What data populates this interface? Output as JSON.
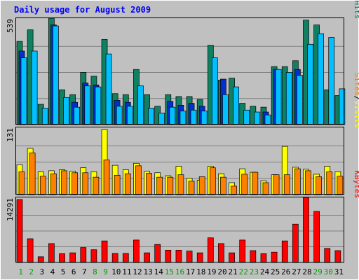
{
  "chart_data": {
    "type": "bar",
    "title": "Daily usage for August 2009",
    "categories": [
      "1",
      "2",
      "3",
      "4",
      "5",
      "6",
      "7",
      "8",
      "9",
      "10",
      "11",
      "12",
      "13",
      "14",
      "15",
      "16",
      "17",
      "18",
      "19",
      "20",
      "21",
      "22",
      "23",
      "24",
      "25",
      "26",
      "27",
      "28",
      "29",
      "30",
      "31"
    ],
    "weekend_days": [
      "1",
      "2",
      "8",
      "9",
      "15",
      "16",
      "22",
      "23",
      "29",
      "30"
    ],
    "panels": [
      {
        "name": "hits-files-pages-visits",
        "max_label": "539",
        "ylim": [
          0,
          539
        ],
        "legend": [
          {
            "text": "Pages",
            "color": "#00c0ff"
          },
          {
            "text": "/",
            "color": "#000000"
          },
          {
            "text": "Files",
            "color": "#0030d0"
          },
          {
            "text": "/",
            "color": "#000000"
          },
          {
            "text": "Hits",
            "color": "#108060"
          }
        ],
        "series": [
          {
            "name": "Hits",
            "color": "#108060",
            "values": [
              430,
              490,
              105,
              550,
              180,
              155,
              270,
              250,
              440,
              160,
              155,
              285,
              155,
              95,
              155,
              145,
              145,
              130,
              410,
              230,
              240,
              110,
              95,
              90,
              300,
              300,
              330,
              540,
              515,
              180,
              150
            ]
          },
          {
            "name": "Files",
            "color": "#0030d0",
            "values": [
              380,
              0,
              0,
              515,
              0,
              115,
              215,
              205,
              0,
              125,
              115,
              0,
              0,
              0,
              120,
              100,
              110,
              95,
              0,
              235,
              0,
              0,
              0,
              65,
              285,
              0,
              285,
              0,
              0,
              0,
              0
            ]
          },
          {
            "name": "Pages",
            "color": "#00c0ff",
            "values": [
              345,
              380,
              85,
              510,
              140,
              90,
              200,
              195,
              365,
              95,
              95,
              200,
              85,
              60,
              90,
              70,
              75,
              70,
              345,
              155,
              195,
              75,
              65,
              50,
              285,
              270,
              255,
              415,
              470,
              450,
              185
            ]
          }
        ]
      },
      {
        "name": "sites-visits",
        "max_label": "131",
        "ylim": [
          0,
          131
        ],
        "legend": [
          {
            "text": "Sites",
            "color": "#ff8000"
          },
          {
            "text": "/",
            "color": "#000000"
          },
          {
            "text": "Visits",
            "color": "#ffff00"
          }
        ],
        "series": [
          {
            "name": "Visits",
            "color": "#ffff00",
            "values": [
              60,
              93,
              46,
              48,
              50,
              47,
              54,
              46,
              131,
              59,
              50,
              63,
              47,
              44,
              38,
              57,
              33,
              29,
              57,
              42,
              24,
              52,
              45,
              28,
              40,
              97,
              55,
              51,
              41,
              57,
              46
            ]
          },
          {
            "name": "Sites",
            "color": "#ff8000",
            "values": [
              46,
              84,
              37,
              42,
              48,
              44,
              44,
              35,
              70,
              39,
              42,
              58,
              43,
              35,
              35,
              40,
              27,
              36,
              54,
              35,
              17,
              41,
              45,
              24,
              40,
              40,
              52,
              48,
              36,
              46,
              37
            ]
          }
        ]
      },
      {
        "name": "kbytes",
        "max_label": "14291",
        "ylim": [
          0,
          14291
        ],
        "legend": [
          {
            "text": "KBytes",
            "color": "#ff0000"
          }
        ],
        "series": [
          {
            "name": "KBytes",
            "color": "#ff0000",
            "values": [
              14291,
              5400,
              1300,
              4300,
              2000,
              2200,
              3400,
              2900,
              4900,
              2050,
              2050,
              5100,
              2200,
              4100,
              2800,
              2800,
              2600,
              2200,
              5600,
              4300,
              2200,
              5100,
              2700,
              2000,
              2350,
              4900,
              8700,
              14800,
              11600,
              3200,
              2700
            ]
          }
        ]
      }
    ]
  }
}
